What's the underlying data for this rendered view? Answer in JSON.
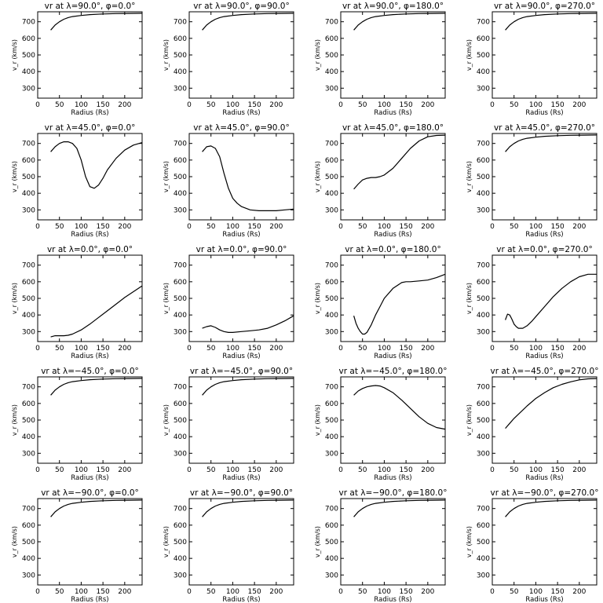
{
  "chart_data": {
    "layout": {
      "rows": 5,
      "cols": 4
    },
    "common": {
      "type": "line",
      "xlabel": "Radius (Rs)",
      "ylabel": "v_r (km/s)",
      "xlim": [
        0,
        240
      ],
      "ylim": [
        240,
        760
      ],
      "xticks": [
        0,
        50,
        100,
        150,
        200
      ],
      "yticks": [
        300,
        400,
        500,
        600,
        700
      ],
      "color": "#000000",
      "grid": false
    },
    "panels": [
      {
        "title": "vr at λ=90.0°, φ=0.0°",
        "x": [
          30,
          40,
          50,
          60,
          70,
          80,
          100,
          120,
          150,
          180,
          210,
          240
        ],
        "y": [
          650,
          680,
          700,
          715,
          725,
          731,
          738,
          743,
          747,
          749,
          750,
          751
        ]
      },
      {
        "title": "vr at λ=90.0°, φ=90.0°",
        "x": [
          30,
          40,
          50,
          60,
          70,
          80,
          100,
          120,
          150,
          180,
          210,
          240
        ],
        "y": [
          650,
          680,
          700,
          715,
          725,
          731,
          738,
          743,
          747,
          749,
          750,
          751
        ]
      },
      {
        "title": "vr at λ=90.0°, φ=180.0°",
        "x": [
          30,
          40,
          50,
          60,
          70,
          80,
          100,
          120,
          150,
          180,
          210,
          240
        ],
        "y": [
          650,
          680,
          700,
          715,
          725,
          731,
          738,
          743,
          747,
          749,
          750,
          751
        ]
      },
      {
        "title": "vr at λ=90.0°, φ=270.0°",
        "x": [
          30,
          40,
          50,
          60,
          70,
          80,
          100,
          120,
          150,
          180,
          210,
          240
        ],
        "y": [
          650,
          680,
          700,
          715,
          725,
          731,
          738,
          743,
          747,
          749,
          750,
          751
        ]
      },
      {
        "title": "vr at λ=45.0°, φ=0.0°",
        "x": [
          30,
          40,
          50,
          60,
          70,
          80,
          90,
          100,
          110,
          120,
          130,
          140,
          150,
          160,
          180,
          200,
          220,
          240
        ],
        "y": [
          650,
          680,
          700,
          710,
          710,
          700,
          670,
          600,
          500,
          440,
          430,
          450,
          490,
          540,
          610,
          660,
          690,
          705
        ]
      },
      {
        "title": "vr at λ=45.0°, φ=90.0°",
        "x": [
          30,
          40,
          50,
          60,
          70,
          80,
          90,
          100,
          110,
          120,
          140,
          160,
          180,
          200,
          220,
          240
        ],
        "y": [
          650,
          680,
          685,
          670,
          620,
          520,
          430,
          370,
          340,
          320,
          300,
          295,
          295,
          295,
          300,
          305
        ]
      },
      {
        "title": "vr at λ=45.0°, φ=180.0°",
        "x": [
          30,
          40,
          50,
          60,
          70,
          80,
          90,
          100,
          120,
          140,
          160,
          180,
          200,
          220,
          240
        ],
        "y": [
          425,
          455,
          480,
          490,
          495,
          495,
          500,
          510,
          550,
          610,
          670,
          715,
          740,
          748,
          750
        ]
      },
      {
        "title": "vr at λ=45.0°, φ=270.0°",
        "x": [
          30,
          40,
          50,
          60,
          70,
          80,
          100,
          120,
          150,
          180,
          210,
          240
        ],
        "y": [
          650,
          680,
          700,
          715,
          725,
          731,
          738,
          743,
          747,
          749,
          750,
          751
        ]
      },
      {
        "title": "vr at λ=0.0°, φ=0.0°",
        "x": [
          30,
          40,
          50,
          60,
          70,
          80,
          100,
          120,
          140,
          160,
          180,
          200,
          220,
          240
        ],
        "y": [
          268,
          275,
          275,
          275,
          278,
          285,
          310,
          345,
          385,
          425,
          465,
          505,
          540,
          575
        ]
      },
      {
        "title": "vr at λ=0.0°, φ=90.0°",
        "x": [
          30,
          40,
          50,
          60,
          70,
          80,
          90,
          100,
          120,
          140,
          160,
          180,
          200,
          220,
          240
        ],
        "y": [
          320,
          330,
          335,
          325,
          310,
          300,
          295,
          295,
          300,
          305,
          310,
          320,
          340,
          365,
          395
        ]
      },
      {
        "title": "vr at λ=0.0°, φ=180.0°",
        "x": [
          30,
          35,
          40,
          45,
          50,
          55,
          60,
          70,
          80,
          90,
          100,
          120,
          140,
          150,
          160,
          180,
          200,
          220,
          240
        ],
        "y": [
          395,
          350,
          320,
          300,
          285,
          285,
          295,
          340,
          400,
          450,
          500,
          560,
          595,
          600,
          600,
          605,
          610,
          625,
          645
        ]
      },
      {
        "title": "vr at λ=0.0°, φ=270.0°",
        "x": [
          30,
          35,
          40,
          45,
          50,
          55,
          60,
          70,
          80,
          90,
          100,
          120,
          140,
          160,
          180,
          200,
          220,
          240
        ],
        "y": [
          370,
          405,
          400,
          375,
          345,
          330,
          320,
          320,
          335,
          360,
          390,
          450,
          510,
          560,
          600,
          630,
          645,
          645
        ]
      },
      {
        "title": "vr at λ=−45.0°, φ=0.0°",
        "x": [
          30,
          40,
          50,
          60,
          70,
          80,
          100,
          120,
          150,
          180,
          210,
          240
        ],
        "y": [
          650,
          680,
          700,
          715,
          725,
          731,
          738,
          743,
          747,
          749,
          750,
          751
        ]
      },
      {
        "title": "vr at λ=−45.0°, φ=90.0°",
        "x": [
          30,
          40,
          50,
          60,
          70,
          80,
          100,
          120,
          150,
          180,
          210,
          240
        ],
        "y": [
          650,
          680,
          700,
          715,
          725,
          731,
          738,
          743,
          747,
          749,
          750,
          751
        ]
      },
      {
        "title": "vr at λ=−45.0°, φ=180.0°",
        "x": [
          30,
          40,
          50,
          60,
          70,
          80,
          90,
          100,
          120,
          140,
          160,
          180,
          200,
          220,
          240
        ],
        "y": [
          650,
          675,
          690,
          700,
          705,
          708,
          705,
          695,
          665,
          620,
          570,
          520,
          480,
          455,
          445
        ]
      },
      {
        "title": "vr at λ=−45.0°, φ=270.0°",
        "x": [
          30,
          40,
          50,
          60,
          70,
          80,
          100,
          120,
          140,
          160,
          180,
          200,
          220,
          240
        ],
        "y": [
          450,
          480,
          510,
          535,
          560,
          585,
          630,
          665,
          695,
          715,
          730,
          742,
          748,
          750
        ]
      },
      {
        "title": "vr at λ=−90.0°, φ=0.0°",
        "x": [
          30,
          40,
          50,
          60,
          70,
          80,
          100,
          120,
          150,
          180,
          210,
          240
        ],
        "y": [
          650,
          680,
          700,
          715,
          725,
          731,
          738,
          743,
          747,
          749,
          750,
          751
        ]
      },
      {
        "title": "vr at λ=−90.0°, φ=90.0°",
        "x": [
          30,
          40,
          50,
          60,
          70,
          80,
          100,
          120,
          150,
          180,
          210,
          240
        ],
        "y": [
          650,
          680,
          700,
          715,
          725,
          731,
          738,
          743,
          747,
          749,
          750,
          751
        ]
      },
      {
        "title": "vr at λ=−90.0°, φ=180.0°",
        "x": [
          30,
          40,
          50,
          60,
          70,
          80,
          100,
          120,
          150,
          180,
          210,
          240
        ],
        "y": [
          650,
          680,
          700,
          715,
          725,
          731,
          738,
          743,
          747,
          749,
          750,
          751
        ]
      },
      {
        "title": "vr at λ=−90.0°, φ=270.0°",
        "x": [
          30,
          40,
          50,
          60,
          70,
          80,
          100,
          120,
          150,
          180,
          210,
          240
        ],
        "y": [
          650,
          680,
          700,
          715,
          725,
          731,
          738,
          743,
          747,
          749,
          750,
          751
        ]
      }
    ]
  }
}
